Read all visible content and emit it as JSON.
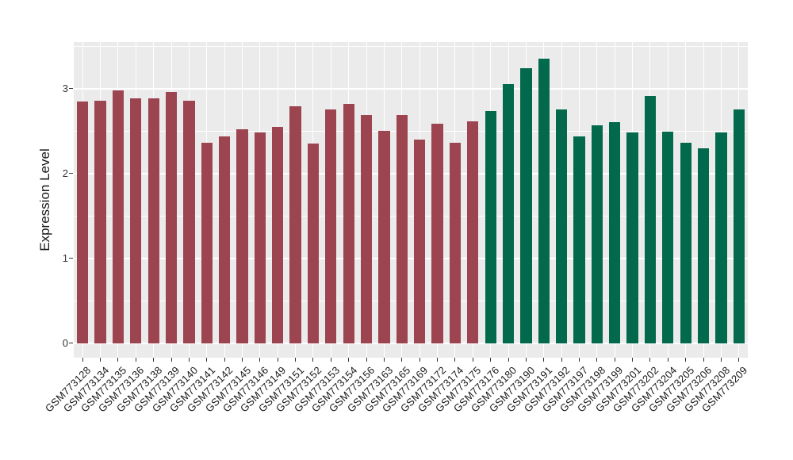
{
  "chart_data": {
    "type": "bar",
    "title": "",
    "xlabel": "",
    "ylabel": "Expression Level",
    "ylim": [
      -0.17,
      3.55
    ],
    "grid": true,
    "legend_position": "none",
    "y_major_ticks": [
      0,
      1,
      2,
      3
    ],
    "y_minor_gridlines": [
      0.5,
      1.5,
      2.5,
      3.5
    ],
    "categories": [
      "GSM773128",
      "GSM773134",
      "GSM773135",
      "GSM773136",
      "GSM773138",
      "GSM773139",
      "GSM773140",
      "GSM773141",
      "GSM773142",
      "GSM773145",
      "GSM773146",
      "GSM773149",
      "GSM773151",
      "GSM773152",
      "GSM773153",
      "GSM773154",
      "GSM773156",
      "GSM773163",
      "GSM773165",
      "GSM773169",
      "GSM773172",
      "GSM773174",
      "GSM773175",
      "GSM773176",
      "GSM773180",
      "GSM773190",
      "GSM773191",
      "GSM773192",
      "GSM773197",
      "GSM773198",
      "GSM773199",
      "GSM773201",
      "GSM773202",
      "GSM773204",
      "GSM773205",
      "GSM773206",
      "GSM773208",
      "GSM773209"
    ],
    "values": [
      2.85,
      2.86,
      2.98,
      2.89,
      2.89,
      2.96,
      2.86,
      2.36,
      2.44,
      2.52,
      2.48,
      2.55,
      2.79,
      2.35,
      2.76,
      2.82,
      2.69,
      2.5,
      2.69,
      2.4,
      2.59,
      2.36,
      2.62,
      2.74,
      3.05,
      3.24,
      3.35,
      2.76,
      2.44,
      2.57,
      2.61,
      2.48,
      2.91,
      2.49,
      2.36,
      2.3,
      2.48,
      2.76
    ],
    "bar_groups": [
      "red",
      "red",
      "red",
      "red",
      "red",
      "red",
      "red",
      "red",
      "red",
      "red",
      "red",
      "red",
      "red",
      "red",
      "red",
      "red",
      "red",
      "red",
      "red",
      "red",
      "red",
      "red",
      "red",
      "green",
      "green",
      "green",
      "green",
      "green",
      "green",
      "green",
      "green",
      "green",
      "green",
      "green",
      "green",
      "green",
      "green",
      "green"
    ],
    "colors": {
      "red": "#9C4450",
      "green": "#03694C",
      "panel_background": "#EBEBEB",
      "gridline": "#FFFFFF",
      "axis_text": "#333333",
      "page_background": "#FFFFFF"
    }
  }
}
